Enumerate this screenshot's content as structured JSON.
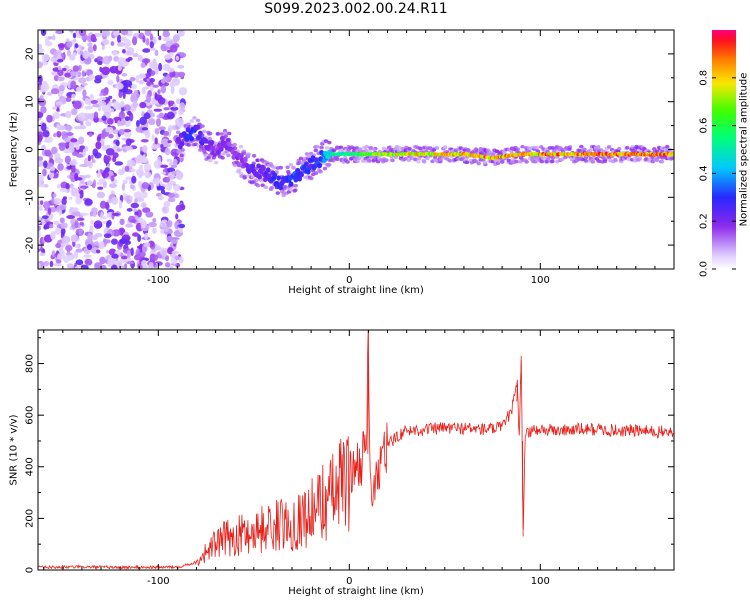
{
  "figure_title": "S099.2023.002.00.24.R11",
  "chart_data": [
    {
      "type": "heatmap",
      "xlabel": "Height of straight line (km)",
      "ylabel": "Frequency (Hz)",
      "xlim": [
        -163,
        170
      ],
      "ylim": [
        -25,
        25
      ],
      "xticks": [
        -100,
        0,
        100
      ],
      "yticks": [
        -20,
        -10,
        0,
        10,
        20
      ],
      "colorbar": {
        "label": "Normalized spectral amplitude",
        "range": [
          0.0,
          1.0
        ],
        "ticks": [
          0.0,
          0.2,
          0.4,
          0.6,
          0.8
        ]
      },
      "noise_region_x": [
        -163,
        -90
      ],
      "ridge": {
        "x": [
          -90,
          -85,
          -80,
          -75,
          -70,
          -65,
          -60,
          -55,
          -50,
          -45,
          -40,
          -35,
          -30,
          -25,
          -20,
          -15,
          -12,
          -8,
          0,
          10,
          20,
          40,
          60,
          70,
          75,
          80,
          90,
          100,
          120,
          140,
          170
        ],
        "freq": [
          1,
          3,
          4,
          1,
          0,
          2,
          -1,
          -3,
          -4,
          -5,
          -6,
          -7,
          -6,
          -5,
          -3,
          -2,
          -1,
          -1,
          -1,
          -1,
          -1,
          -1,
          -1,
          -1.5,
          -1.8,
          -1.5,
          -1,
          -1,
          -1,
          -1,
          -1
        ],
        "amplitude": [
          0.2,
          0.3,
          0.3,
          0.25,
          0.2,
          0.2,
          0.2,
          0.2,
          0.25,
          0.25,
          0.3,
          0.3,
          0.35,
          0.35,
          0.3,
          0.35,
          0.45,
          0.55,
          0.6,
          0.7,
          0.8,
          0.85,
          0.85,
          0.9,
          0.9,
          0.9,
          0.9,
          0.95,
          0.95,
          0.95,
          0.95
        ]
      }
    },
    {
      "type": "line",
      "xlabel": "Height of straight line (km)",
      "ylabel": "SNR (10 * v/v)",
      "xlim": [
        -163,
        170
      ],
      "ylim": [
        0,
        930
      ],
      "xticks": [
        -100,
        0,
        100
      ],
      "yticks": [
        0,
        200,
        400,
        600,
        800
      ],
      "line_color": "#e8201a",
      "series": [
        {
          "x": [
            -163,
            -140,
            -120,
            -100,
            -90,
            -80,
            -75,
            -70,
            -65,
            -60,
            -55,
            -50,
            -45,
            -40,
            -35,
            -30,
            -25,
            -20,
            -15,
            -10,
            -5,
            0,
            5,
            8,
            9,
            10,
            11,
            12,
            15,
            20,
            25,
            30,
            40,
            50,
            60,
            70,
            80,
            85,
            88,
            89,
            90,
            91,
            92,
            95,
            100,
            110,
            120,
            130,
            140,
            150,
            160,
            170
          ],
          "y": [
            10,
            12,
            10,
            11,
            12,
            30,
            70,
            100,
            120,
            130,
            140,
            150,
            160,
            170,
            175,
            180,
            200,
            220,
            260,
            280,
            320,
            370,
            420,
            450,
            500,
            930,
            420,
            250,
            380,
            480,
            520,
            540,
            545,
            550,
            550,
            545,
            550,
            620,
            720,
            500,
            830,
            130,
            520,
            540,
            545,
            540,
            545,
            545,
            540,
            540,
            535,
            535
          ]
        }
      ]
    }
  ]
}
